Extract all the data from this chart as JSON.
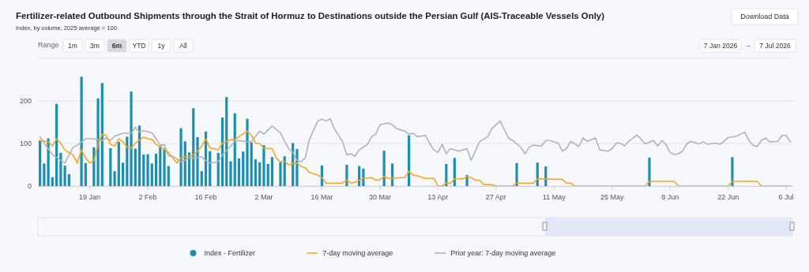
{
  "chart_data": {
    "type": "bar",
    "title": "Fertilizer-related Outbound Shipments through the Strait of Hormuz to Destinations outside the Persian Gulf (AIS-Traceable Vessels Only)",
    "subtitle": "Index, by volume, 2025 average = 100",
    "annotations": [
      "Range",
      "1m",
      "3m",
      "6m",
      "YTD",
      "1y",
      "All",
      "7 Jan 2026",
      "→",
      "7 Jul 2026",
      "Download Data"
    ],
    "xlim": [
      "2026-01-06T12:00",
      "2026-07-07T12:00"
    ],
    "xticks": [
      {
        "value": "2026-01-19",
        "label": "19 Jan"
      },
      {
        "value": "2026-02-02",
        "label": "2 Feb"
      },
      {
        "value": "2026-02-16",
        "label": "16 Feb"
      },
      {
        "value": "2026-03-02",
        "label": "2 Mar"
      },
      {
        "value": "2026-03-16",
        "label": "16 Mar"
      },
      {
        "value": "2026-03-30",
        "label": "30 Mar"
      },
      {
        "value": "2026-04-13",
        "label": "13 Apr"
      },
      {
        "value": "2026-04-27",
        "label": "27 Apr"
      },
      {
        "value": "2026-05-11",
        "label": "11 May"
      },
      {
        "value": "2026-05-25",
        "label": "25 May"
      },
      {
        "value": "2026-06-08",
        "label": "8 Jun"
      },
      {
        "value": "2026-06-22",
        "label": "22 Jun"
      },
      {
        "value": "2026-07-06",
        "label": "6 Jul"
      }
    ],
    "ylim": [
      0,
      300
    ],
    "yticks": [
      0,
      100,
      200,
      {
        "value": 300,
        "label": null
      }
    ],
    "grid": "y",
    "legend": "bottom",
    "series": [
      {
        "name": "Index - Fertilizer",
        "color": "#1a8fb2",
        "x": [
          "2026-01-07",
          "2026-01-08",
          "2026-01-09",
          "2026-01-10",
          "2026-01-11",
          "2026-01-12",
          "2026-01-13",
          "2026-01-14",
          "2026-01-17",
          "2026-01-18",
          "2026-01-20",
          "2026-01-21",
          "2026-01-22",
          "2026-01-24",
          "2026-01-25",
          "2026-01-26",
          "2026-01-27",
          "2026-01-28",
          "2026-01-29",
          "2026-01-30",
          "2026-01-31",
          "2026-02-01",
          "2026-02-02",
          "2026-02-03",
          "2026-02-04",
          "2026-02-05",
          "2026-02-06",
          "2026-02-07",
          "2026-02-10",
          "2026-02-11",
          "2026-02-12",
          "2026-02-13",
          "2026-02-14",
          "2026-02-15",
          "2026-02-16",
          "2026-02-17",
          "2026-02-19",
          "2026-02-20",
          "2026-02-21",
          "2026-02-22",
          "2026-02-23",
          "2026-02-24",
          "2026-02-25",
          "2026-02-26",
          "2026-02-27",
          "2026-02-28",
          "2026-03-01",
          "2026-03-02",
          "2026-03-03",
          "2026-03-04",
          "2026-03-06",
          "2026-03-07",
          "2026-03-09",
          "2026-03-10",
          "2026-03-16",
          "2026-03-22",
          "2026-03-25",
          "2026-03-26",
          "2026-03-31",
          "2026-04-02",
          "2026-04-06",
          "2026-04-15",
          "2026-04-17",
          "2026-04-20",
          "2026-05-02",
          "2026-05-07",
          "2026-05-09",
          "2026-06-03",
          "2026-06-23"
        ],
        "values": [
          107,
          53,
          112,
          21,
          193,
          78,
          48,
          28,
          257,
          54,
          91,
          206,
          242,
          89,
          35,
          104,
          55,
          116,
          222,
          88,
          142,
          74,
          75,
          53,
          76,
          94,
          88,
          47,
          136,
          105,
          79,
          183,
          115,
          35,
          128,
          82,
          78,
          161,
          209,
          58,
          171,
          65,
          81,
          158,
          102,
          63,
          56,
          96,
          52,
          68,
          56,
          70,
          101,
          87,
          48,
          50,
          47,
          41,
          83,
          53,
          119,
          52,
          66,
          26,
          54,
          55,
          46,
          67,
          68
        ]
      },
      {
        "name": "7-day moving average",
        "type": "line",
        "color": "#f5a623",
        "x": [
          "2026-01-07",
          "2026-01-09",
          "2026-01-10",
          "2026-01-11",
          "2026-01-12",
          "2026-01-13",
          "2026-01-15",
          "2026-01-16",
          "2026-01-17",
          "2026-01-18",
          "2026-01-19",
          "2026-01-20",
          "2026-01-21",
          "2026-01-22",
          "2026-01-23",
          "2026-01-24",
          "2026-01-25",
          "2026-01-26",
          "2026-01-27",
          "2026-01-28",
          "2026-01-29",
          "2026-01-30",
          "2026-02-01",
          "2026-02-02",
          "2026-02-03",
          "2026-02-04",
          "2026-02-06",
          "2026-02-07",
          "2026-02-08",
          "2026-02-09",
          "2026-02-10",
          "2026-02-11",
          "2026-02-13",
          "2026-02-14",
          "2026-02-15",
          "2026-02-16",
          "2026-02-17",
          "2026-02-18",
          "2026-02-19",
          "2026-02-20",
          "2026-02-22",
          "2026-02-23",
          "2026-02-24",
          "2026-02-26",
          "2026-02-27",
          "2026-02-28",
          "2026-03-01",
          "2026-03-02",
          "2026-03-04",
          "2026-03-05",
          "2026-03-06",
          "2026-03-07",
          "2026-03-08",
          "2026-03-09",
          "2026-03-10",
          "2026-03-11",
          "2026-03-12",
          "2026-03-13",
          "2026-03-15",
          "2026-03-16",
          "2026-03-17",
          "2026-03-21",
          "2026-03-22",
          "2026-03-23",
          "2026-03-24",
          "2026-03-26",
          "2026-03-28",
          "2026-03-29",
          "2026-03-30",
          "2026-03-31",
          "2026-04-01",
          "2026-04-05",
          "2026-04-06",
          "2026-04-07",
          "2026-04-08",
          "2026-04-10",
          "2026-04-12",
          "2026-04-13",
          "2026-04-14",
          "2026-04-15",
          "2026-04-16",
          "2026-04-17",
          "2026-04-19",
          "2026-04-20",
          "2026-04-21",
          "2026-04-22",
          "2026-04-23",
          "2026-04-24",
          "2026-04-26",
          "2026-04-27",
          "2026-05-01",
          "2026-05-02",
          "2026-05-06",
          "2026-05-07",
          "2026-05-11",
          "2026-05-13",
          "2026-05-14",
          "2026-05-15",
          "2026-05-16",
          "2026-06-02",
          "2026-06-03",
          "2026-06-09",
          "2026-06-10",
          "2026-06-22",
          "2026-06-23",
          "2026-06-29",
          "2026-06-30",
          "2026-07-07"
        ],
        "values": [
          107,
          104,
          94,
          111,
          101,
          85,
          73,
          54,
          85,
          66,
          54,
          60,
          98,
          122,
          119,
          98,
          94,
          111,
          104,
          91,
          89,
          101,
          115,
          111,
          110,
          98,
          86,
          79,
          66,
          54,
          66,
          69,
          73,
          82,
          94,
          111,
          89,
          88,
          85,
          101,
          109,
          109,
          116,
          129,
          119,
          101,
          100,
          89,
          88,
          66,
          57,
          57,
          50,
          53,
          54,
          46,
          43,
          32,
          26,
          20,
          7,
          7,
          14,
          7,
          9,
          18,
          20,
          14,
          15,
          23,
          18,
          20,
          35,
          26,
          24,
          18,
          18,
          0,
          0,
          7,
          7,
          17,
          17,
          22,
          20,
          14,
          14,
          4,
          3,
          0,
          0,
          7,
          7,
          17,
          16,
          16,
          7,
          7,
          0,
          0,
          11,
          11,
          0,
          0,
          11,
          11,
          0,
          0
        ]
      },
      {
        "name": "Prior year: 7-day moving average",
        "type": "line",
        "color": "#b3b3b3",
        "x": [
          "2026-01-07",
          "2026-01-08",
          "2026-01-10",
          "2026-01-12",
          "2026-01-13",
          "2026-01-14",
          "2026-01-15",
          "2026-01-16",
          "2026-01-18",
          "2026-01-20",
          "2026-01-22",
          "2026-01-23",
          "2026-01-24",
          "2026-01-25",
          "2026-01-27",
          "2026-01-29",
          "2026-01-30",
          "2026-01-31",
          "2026-02-01",
          "2026-02-03",
          "2026-02-04",
          "2026-02-05",
          "2026-02-06",
          "2026-02-07",
          "2026-02-08",
          "2026-02-10",
          "2026-02-11",
          "2026-02-12",
          "2026-02-13",
          "2026-02-15",
          "2026-02-16",
          "2026-02-17",
          "2026-02-19",
          "2026-02-20",
          "2026-02-22",
          "2026-02-23",
          "2026-02-24",
          "2026-02-26",
          "2026-02-27",
          "2026-03-01",
          "2026-03-02",
          "2026-03-04",
          "2026-03-06",
          "2026-03-07",
          "2026-03-08",
          "2026-03-09",
          "2026-03-10",
          "2026-03-11",
          "2026-03-12",
          "2026-03-13",
          "2026-03-15",
          "2026-03-16",
          "2026-03-17",
          "2026-03-18",
          "2026-03-19",
          "2026-03-21",
          "2026-03-22",
          "2026-03-23",
          "2026-03-24",
          "2026-03-25",
          "2026-03-27",
          "2026-03-28",
          "2026-03-29",
          "2026-03-30",
          "2026-04-01",
          "2026-04-02",
          "2026-04-03",
          "2026-04-05",
          "2026-04-06",
          "2026-04-07",
          "2026-04-08",
          "2026-04-10",
          "2026-04-11",
          "2026-04-12",
          "2026-04-13",
          "2026-04-14",
          "2026-04-15",
          "2026-04-16",
          "2026-04-18",
          "2026-04-20",
          "2026-04-21",
          "2026-04-23",
          "2026-04-25",
          "2026-04-26",
          "2026-04-28",
          "2026-04-30",
          "2026-05-01",
          "2026-05-03",
          "2026-05-04",
          "2026-05-05",
          "2026-05-06",
          "2026-05-08",
          "2026-05-09",
          "2026-05-10",
          "2026-05-12",
          "2026-05-13",
          "2026-05-14",
          "2026-05-15",
          "2026-05-17",
          "2026-05-18",
          "2026-05-19",
          "2026-05-21",
          "2026-05-22",
          "2026-05-24",
          "2026-05-25",
          "2026-05-26",
          "2026-05-27",
          "2026-05-28",
          "2026-05-29",
          "2026-05-31",
          "2026-06-01",
          "2026-06-02",
          "2026-06-04",
          "2026-06-05",
          "2026-06-06",
          "2026-06-07",
          "2026-06-08",
          "2026-06-09",
          "2026-06-10",
          "2026-06-11",
          "2026-06-12",
          "2026-06-13",
          "2026-06-15",
          "2026-06-16",
          "2026-06-17",
          "2026-06-19",
          "2026-06-20",
          "2026-06-21",
          "2026-06-22",
          "2026-06-24",
          "2026-06-25",
          "2026-06-26",
          "2026-06-27",
          "2026-06-28",
          "2026-06-29",
          "2026-06-30",
          "2026-07-01",
          "2026-07-02",
          "2026-07-04",
          "2026-07-05",
          "2026-07-06",
          "2026-07-07"
        ],
        "values": [
          116,
          101,
          74,
          61,
          54,
          73,
          91,
          96,
          111,
          111,
          107,
          113,
          107,
          117,
          124,
          124,
          138,
          127,
          130,
          125,
          111,
          96,
          97,
          71,
          70,
          57,
          61,
          66,
          66,
          69,
          60,
          54,
          57,
          73,
          94,
          105,
          107,
          104,
          104,
          129,
          122,
          141,
          125,
          106,
          88,
          79,
          60,
          57,
          66,
          110,
          153,
          157,
          153,
          158,
          135,
          104,
          73,
          76,
          70,
          85,
          98,
          116,
          122,
          144,
          148,
          144,
          135,
          129,
          122,
          124,
          116,
          119,
          100,
          85,
          79,
          98,
          76,
          88,
          82,
          88,
          60,
          104,
          116,
          135,
          153,
          113,
          107,
          91,
          76,
          91,
          96,
          94,
          107,
          107,
          101,
          82,
          88,
          105,
          93,
          113,
          105,
          113,
          85,
          82,
          88,
          101,
          101,
          94,
          105,
          120,
          110,
          99,
          107,
          94,
          107,
          98,
          79,
          74,
          76,
          82,
          99,
          105,
          99,
          104,
          98,
          101,
          98,
          105,
          114,
          117,
          122,
          127,
          107,
          96,
          93,
          107,
          113,
          104,
          105,
          119,
          119,
          104
        ]
      }
    ]
  }
}
